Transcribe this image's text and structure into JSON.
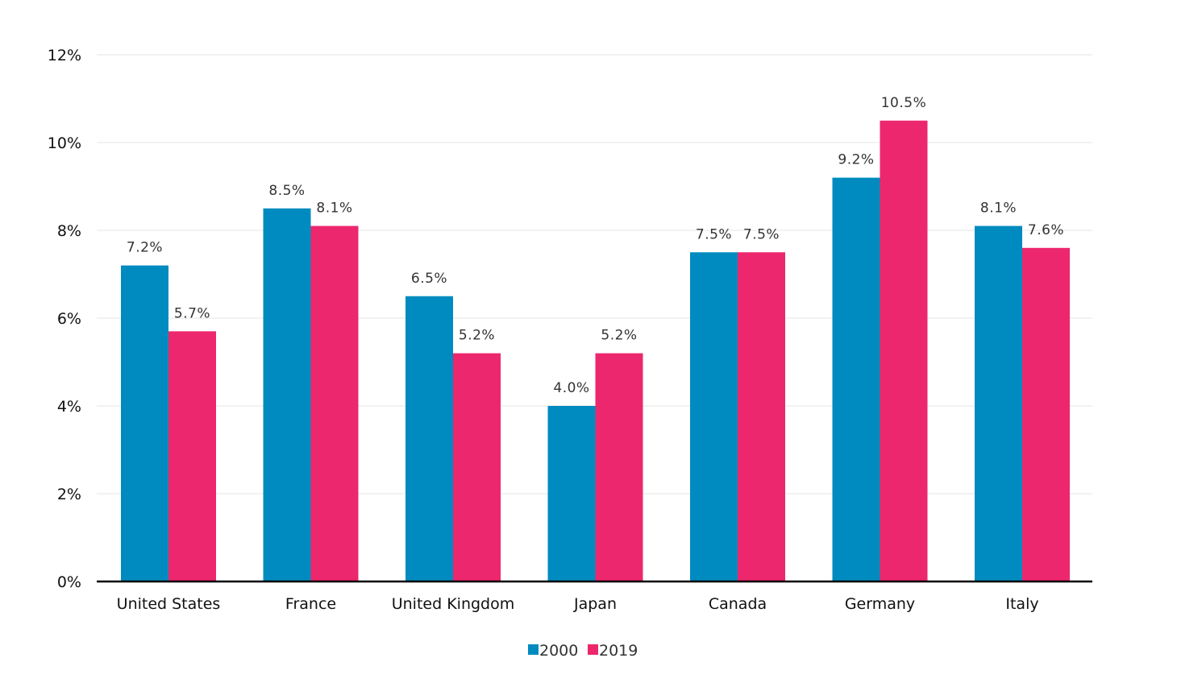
{
  "chart_data": {
    "type": "bar",
    "categories": [
      "United States",
      "France",
      "United Kingdom",
      "Japan",
      "Canada",
      "Germany",
      "Italy"
    ],
    "series": [
      {
        "name": "2000",
        "values": [
          7.2,
          8.5,
          6.5,
          4.0,
          7.5,
          9.2,
          8.1
        ],
        "labels": [
          "7.2%",
          "8.5%",
          "6.5%",
          "4.0%",
          "7.5%",
          "9.2%",
          "8.1%"
        ],
        "color": "#008bc0"
      },
      {
        "name": "2019",
        "values": [
          5.7,
          8.1,
          5.2,
          5.2,
          7.5,
          10.5,
          7.6
        ],
        "labels": [
          "5.7%",
          "8.1%",
          "5.2%",
          "5.2%",
          "7.5%",
          "10.5%",
          "7.6%"
        ],
        "color": "#ed276d"
      }
    ],
    "ylim": [
      0,
      12
    ],
    "yticks": [
      0,
      2,
      4,
      6,
      8,
      10,
      12
    ],
    "ytick_labels": [
      "0%",
      "2%",
      "4%",
      "6%",
      "8%",
      "10%",
      "12%"
    ],
    "grid": true,
    "legend_position": "bottom-center",
    "title": "",
    "xlabel": "",
    "ylabel": ""
  }
}
